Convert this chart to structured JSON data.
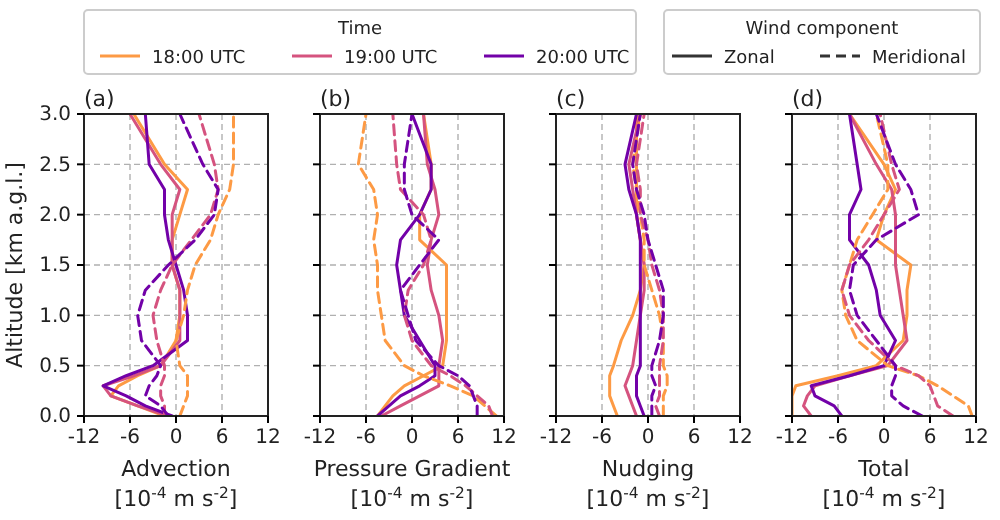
{
  "chart_data": [
    {
      "type": "line",
      "title": "(a)",
      "xlabel": "Advection\n[10$^{-4}$ m s$^{-2}$]",
      "ylabel": "Altitude [km a.g.l.]",
      "legend": "top",
      "legend_title": "Time",
      "annotations": [
        "Wind component",
        "Zonal",
        "Meridional"
      ],
      "grid": true,
      "xlim": [
        -12,
        12
      ],
      "xticks": [
        -12,
        -6,
        0,
        6,
        12
      ],
      "ylim": [
        0,
        3
      ],
      "yticks": [
        {
          "value": 0,
          "label": "0.0"
        },
        {
          "value": 0.5,
          "label": "0.5"
        },
        {
          "value": 1,
          "label": "1.0"
        },
        {
          "value": 1.5,
          "label": "1.5"
        },
        {
          "value": 2,
          "label": "2.0"
        },
        {
          "value": 2.5,
          "label": "2.5"
        },
        {
          "value": 3,
          "label": "3.0"
        }
      ],
      "series": [
        {
          "name": "18:00 UTC",
          "color": "#fd9a44",
          "line_style": "solid",
          "x": [
            -1.5,
            -5,
            -8.5,
            -7.5,
            -5,
            -2,
            0,
            0.5,
            0.5,
            -0.5,
            -0.5,
            0.5,
            1.5,
            -1.5,
            -5.5
          ],
          "values": [
            0,
            0.1,
            0.2,
            0.3,
            0.4,
            0.5,
            0.75,
            1,
            1.25,
            1.5,
            1.75,
            2,
            2.25,
            2.5,
            3
          ]
        },
        {
          "name": "19:00 UTC",
          "color": "#d5537f",
          "line_style": "solid",
          "x": [
            -1,
            -5,
            -8.5,
            -9.5,
            -5.5,
            -2,
            0.5,
            0.5,
            0.5,
            -0.5,
            -0.5,
            -0.5,
            0.5,
            -2,
            -6
          ],
          "values": [
            0,
            0.1,
            0.2,
            0.3,
            0.4,
            0.5,
            0.75,
            1,
            1.25,
            1.5,
            1.75,
            2,
            2.25,
            2.5,
            3
          ]
        },
        {
          "name": "20:00 UTC",
          "color": "#7201a8",
          "line_style": "solid",
          "x": [
            -0.5,
            -4,
            -6.5,
            -9.5,
            -6.5,
            -3,
            1.5,
            1.5,
            1,
            0,
            -1,
            -1.5,
            -1.5,
            -3.5,
            -4
          ],
          "values": [
            0,
            0.1,
            0.2,
            0.3,
            0.4,
            0.5,
            0.75,
            1,
            1.25,
            1.5,
            1.75,
            2,
            2.25,
            2.5,
            3
          ]
        },
        {
          "color": "#fd9a44",
          "line_style": "dashed",
          "x": [
            0.5,
            1,
            1.5,
            1.5,
            1.5,
            0.5,
            0,
            1,
            1.5,
            2.5,
            4.5,
            5.5,
            7,
            7.5,
            7.5
          ],
          "values": [
            0,
            0.1,
            0.2,
            0.3,
            0.4,
            0.5,
            0.75,
            1,
            1.25,
            1.5,
            1.75,
            2,
            2.25,
            2.5,
            3
          ]
        },
        {
          "color": "#d5537f",
          "line_style": "dashed",
          "x": [
            -1.5,
            -1.5,
            -2,
            -2,
            -1.5,
            -1.5,
            -2.5,
            -3,
            -2,
            -0.5,
            2,
            4.5,
            5.5,
            5,
            3
          ],
          "values": [
            0,
            0.1,
            0.2,
            0.3,
            0.4,
            0.5,
            0.75,
            1,
            1.25,
            1.5,
            1.75,
            2,
            2.25,
            2.5,
            3
          ]
        },
        {
          "color": "#7201a8",
          "line_style": "dashed",
          "x": [
            -1,
            -2,
            -4,
            -3.5,
            -2.5,
            -2,
            -4.5,
            -5,
            -4,
            -1,
            2.5,
            5,
            5.5,
            3.5,
            0.5
          ],
          "values": [
            0,
            0.1,
            0.2,
            0.3,
            0.4,
            0.5,
            0.75,
            1,
            1.25,
            1.5,
            1.75,
            2,
            2.25,
            2.5,
            3
          ]
        }
      ]
    },
    {
      "type": "line",
      "title": "(b)",
      "xlabel": "Pressure Gradient\n[10$^{-4}$ m s$^{-2}$]",
      "grid": true,
      "tick_labels": "x",
      "xlim": [
        -12,
        12
      ],
      "xticks": [
        -12,
        -6,
        0,
        6,
        12
      ],
      "ylim": [
        0,
        3
      ],
      "yticks": [
        {
          "value": 0,
          "label": null
        },
        {
          "value": 0.5,
          "label": null
        },
        {
          "value": 1,
          "label": null
        },
        {
          "value": 1.5,
          "label": null
        },
        {
          "value": 2,
          "label": null
        },
        {
          "value": 2.5,
          "label": null
        },
        {
          "value": 3,
          "label": null
        }
      ],
      "series": [
        {
          "color": "#fd9a44",
          "line_style": "solid",
          "x": [
            -4.5,
            -3.5,
            -2.5,
            -1,
            1.5,
            4,
            4.5,
            4.5,
            4.5,
            4.5,
            1,
            1,
            2.5,
            2.5,
            1.5
          ],
          "values": [
            0,
            0.1,
            0.2,
            0.3,
            0.4,
            0.5,
            0.75,
            1,
            1.25,
            1.5,
            1.75,
            2,
            2.25,
            2.5,
            3
          ]
        },
        {
          "color": "#d5537f",
          "line_style": "solid",
          "x": [
            -4,
            -1.5,
            1,
            3.5,
            3.5,
            3.5,
            4,
            3.5,
            2.5,
            2,
            2.5,
            3.5,
            3,
            2,
            1.5
          ],
          "values": [
            0,
            0.1,
            0.2,
            0.3,
            0.4,
            0.5,
            0.75,
            1,
            1.25,
            1.5,
            1.75,
            2,
            2.25,
            2.5,
            3
          ]
        },
        {
          "color": "#7201a8",
          "line_style": "solid",
          "x": [
            -4.5,
            -3,
            -1.5,
            1,
            3,
            3,
            1,
            -1,
            -1.5,
            -2,
            -1.5,
            1,
            2.5,
            2.5,
            0
          ],
          "values": [
            0,
            0.1,
            0.2,
            0.3,
            0.4,
            0.5,
            0.75,
            1,
            1.25,
            1.5,
            1.75,
            2,
            2.25,
            2.5,
            3
          ]
        },
        {
          "color": "#fd9a44",
          "line_style": "dashed",
          "x": [
            11,
            9.5,
            8,
            5,
            1.5,
            -1,
            -3.5,
            -4,
            -4.5,
            -4.5,
            -5,
            -4.5,
            -5,
            -7,
            -6
          ],
          "values": [
            0,
            0.1,
            0.2,
            0.3,
            0.4,
            0.5,
            0.75,
            1,
            1.25,
            1.5,
            1.75,
            2,
            2.25,
            2.5,
            3
          ]
        },
        {
          "color": "#d5537f",
          "line_style": "dashed",
          "x": [
            10.5,
            10,
            8.5,
            7,
            5,
            2.5,
            0,
            -1,
            -0.5,
            1.5,
            2.5,
            1.5,
            -1.5,
            -2,
            -2.5
          ],
          "values": [
            0,
            0.1,
            0.2,
            0.3,
            0.4,
            0.5,
            0.75,
            1,
            1.25,
            1.5,
            1.75,
            2,
            2.25,
            2.5,
            3
          ]
        },
        {
          "color": "#7201a8",
          "line_style": "dashed",
          "x": [
            8.5,
            8.5,
            8,
            7.5,
            6,
            3.5,
            0.5,
            -0.5,
            -1.5,
            1,
            3.5,
            0,
            -1,
            -1,
            0
          ],
          "values": [
            0,
            0.1,
            0.2,
            0.3,
            0.4,
            0.5,
            0.75,
            1,
            1.25,
            1.5,
            1.75,
            2,
            2.25,
            2.5,
            3
          ]
        }
      ]
    },
    {
      "type": "line",
      "title": "(c)",
      "xlabel": "Nudging\n[10$^{-4}$ m s$^{-2}$]",
      "grid": true,
      "tick_labels": "x",
      "xlim": [
        -12,
        12
      ],
      "xticks": [
        -12,
        -6,
        0,
        6,
        12
      ],
      "ylim": [
        0,
        3
      ],
      "yticks": [
        {
          "value": 0,
          "label": null
        },
        {
          "value": 0.5,
          "label": null
        },
        {
          "value": 1,
          "label": null
        },
        {
          "value": 1.5,
          "label": null
        },
        {
          "value": 2,
          "label": null
        },
        {
          "value": 2.5,
          "label": null
        },
        {
          "value": 3,
          "label": null
        }
      ],
      "series": [
        {
          "color": "#fd9a44",
          "line_style": "solid",
          "x": [
            -4,
            -4.5,
            -5,
            -5,
            -5,
            -4.5,
            -3.5,
            -2,
            -1,
            -0.5,
            -1,
            -1.5,
            -1.5,
            -1.5,
            -1.5
          ],
          "values": [
            0,
            0.1,
            0.2,
            0.3,
            0.4,
            0.5,
            0.75,
            1,
            1.25,
            1.5,
            1.75,
            2,
            2.25,
            2.5,
            3
          ]
        },
        {
          "color": "#d5537f",
          "line_style": "solid",
          "x": [
            -1.5,
            -2,
            -2.5,
            -3,
            -2.5,
            -2,
            -1.5,
            -1,
            -0.5,
            -0.5,
            -1,
            -1.5,
            -2,
            -2.5,
            -1
          ],
          "values": [
            0,
            0.1,
            0.2,
            0.3,
            0.4,
            0.5,
            0.75,
            1,
            1.25,
            1.5,
            1.75,
            2,
            2.25,
            2.5,
            3
          ]
        },
        {
          "color": "#7201a8",
          "line_style": "solid",
          "x": [
            -0.5,
            -1,
            -1.5,
            -1.5,
            -1.5,
            -1,
            -1,
            -1,
            -1,
            -1,
            -1,
            -1.5,
            -2.5,
            -3,
            -1.5
          ],
          "values": [
            0,
            0.1,
            0.2,
            0.3,
            0.4,
            0.5,
            0.75,
            1,
            1.25,
            1.5,
            1.75,
            2,
            2.25,
            2.5,
            3
          ]
        },
        {
          "color": "#fd9a44",
          "line_style": "dashed",
          "x": [
            2,
            2,
            2,
            2.5,
            2.5,
            2,
            2,
            1.5,
            0.5,
            -0.5,
            -0.5,
            -1,
            -1.5,
            -2,
            -1
          ],
          "values": [
            0,
            0.1,
            0.2,
            0.3,
            0.4,
            0.5,
            0.75,
            1,
            1.25,
            1.5,
            1.75,
            2,
            2.25,
            2.5,
            3
          ]
        },
        {
          "color": "#d5537f",
          "line_style": "dashed",
          "x": [
            1.5,
            1,
            1.5,
            1.5,
            1.5,
            1.5,
            2,
            2,
            1.5,
            0.5,
            0,
            -1,
            -1,
            -1.5,
            -0.5
          ],
          "values": [
            0,
            0.1,
            0.2,
            0.3,
            0.4,
            0.5,
            0.75,
            1,
            1.25,
            1.5,
            1.75,
            2,
            2.25,
            2.5,
            3
          ]
        },
        {
          "color": "#7201a8",
          "line_style": "dashed",
          "x": [
            0.5,
            0.5,
            0.5,
            1,
            0.5,
            0.5,
            1.5,
            2,
            2,
            1,
            0,
            -0.5,
            -1.5,
            -2,
            -1
          ],
          "values": [
            0,
            0.1,
            0.2,
            0.3,
            0.4,
            0.5,
            0.75,
            1,
            1.25,
            1.5,
            1.75,
            2,
            2.25,
            2.5,
            3
          ]
        }
      ]
    },
    {
      "type": "line",
      "title": "(d)",
      "xlabel": "Total\n[10$^{-4}$ m s$^{-2}$]",
      "grid": true,
      "tick_labels": "x",
      "xlim": [
        -12,
        12
      ],
      "xticks": [
        -12,
        -6,
        0,
        6,
        12
      ],
      "ylim": [
        0,
        3
      ],
      "yticks": [
        {
          "value": 0,
          "label": null
        },
        {
          "value": 0.5,
          "label": null
        },
        {
          "value": 1,
          "label": null
        },
        {
          "value": 1.5,
          "label": null
        },
        {
          "value": 2,
          "label": null
        },
        {
          "value": 2.5,
          "label": null
        },
        {
          "value": 3,
          "label": null
        }
      ],
      "series": [
        {
          "color": "#fd9a44",
          "line_style": "solid",
          "x": [
            -12,
            -12,
            -12,
            -11.5,
            -6,
            -1,
            2.5,
            3,
            3,
            3.5,
            -1,
            0,
            1.5,
            0,
            -4.5
          ],
          "values": [
            0,
            0.1,
            0.2,
            0.3,
            0.4,
            0.5,
            0.75,
            1,
            1.25,
            1.5,
            1.75,
            2,
            2.25,
            2.5,
            3
          ]
        },
        {
          "color": "#d5537f",
          "line_style": "solid",
          "x": [
            -9.5,
            -10.5,
            -10,
            -9,
            -4.5,
            0.5,
            3,
            2.5,
            2,
            1.5,
            1.5,
            1.5,
            1,
            -1,
            -4.5
          ],
          "values": [
            0,
            0.1,
            0.2,
            0.3,
            0.4,
            0.5,
            0.75,
            1,
            1.25,
            1.5,
            1.75,
            2,
            2.25,
            2.5,
            3
          ]
        },
        {
          "color": "#7201a8",
          "line_style": "solid",
          "x": [
            -5.5,
            -6.5,
            -9,
            -9.5,
            -4.5,
            0,
            1.5,
            -0.5,
            -1,
            -2,
            -4.5,
            -4.5,
            -3,
            -3.5,
            -4.5
          ],
          "values": [
            0,
            0.1,
            0.2,
            0.3,
            0.4,
            0.5,
            0.75,
            1,
            1.25,
            1.5,
            1.75,
            2,
            2.25,
            2.5,
            3
          ]
        },
        {
          "color": "#fd9a44",
          "line_style": "dashed",
          "x": [
            11.5,
            11,
            9,
            7,
            4.5,
            0.5,
            -3.5,
            -5,
            -5.5,
            -4.5,
            -3.5,
            -1.5,
            0.5,
            0.5,
            -1
          ],
          "values": [
            0,
            0.1,
            0.2,
            0.3,
            0.4,
            0.5,
            0.75,
            1,
            1.25,
            1.5,
            1.75,
            2,
            2.25,
            2.5,
            3
          ]
        },
        {
          "color": "#d5537f",
          "line_style": "dashed",
          "x": [
            9,
            7,
            6.5,
            6,
            4.5,
            1.5,
            -2,
            -4.5,
            -5.5,
            -4.5,
            -2,
            0,
            2,
            1,
            -0.5
          ],
          "values": [
            0,
            0.1,
            0.2,
            0.3,
            0.4,
            0.5,
            0.75,
            1,
            1.25,
            1.5,
            1.75,
            2,
            2.25,
            2.5,
            3
          ]
        },
        {
          "color": "#7201a8",
          "line_style": "dashed",
          "x": [
            5,
            2.5,
            1,
            1,
            1.5,
            1.5,
            -1,
            -3.5,
            -4.5,
            -4,
            -1,
            4.5,
            3.5,
            1.5,
            -1
          ],
          "values": [
            0,
            0.1,
            0.2,
            0.3,
            0.4,
            0.5,
            0.75,
            1,
            1.25,
            1.5,
            1.75,
            2,
            2.25,
            2.5,
            3
          ]
        }
      ]
    }
  ]
}
